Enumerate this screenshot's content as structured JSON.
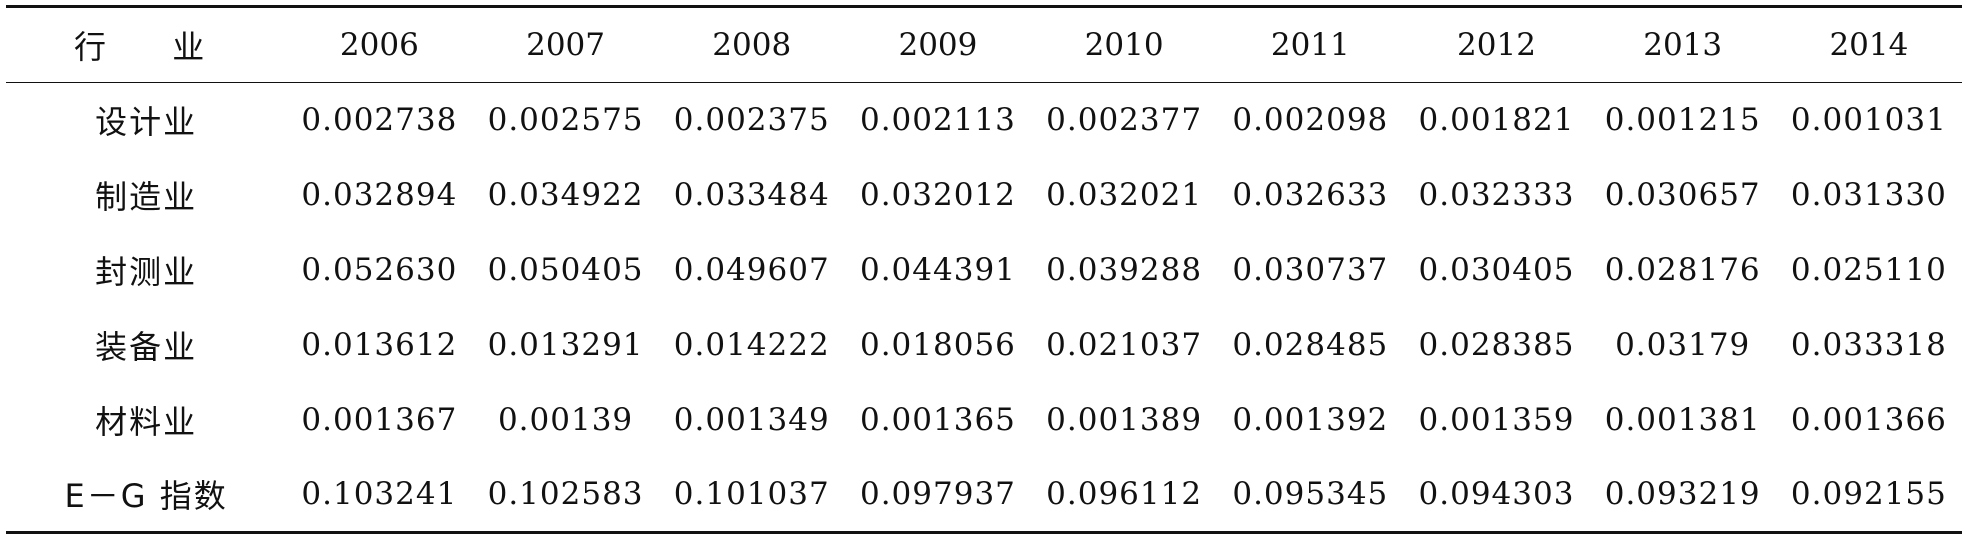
{
  "table": {
    "header": {
      "industry_label": "行 业",
      "years": [
        "2006",
        "2007",
        "2008",
        "2009",
        "2010",
        "2011",
        "2012",
        "2013",
        "2014"
      ]
    },
    "rows": [
      {
        "name": "设计业",
        "values": [
          "0.002738",
          "0.002575",
          "0.002375",
          "0.002113",
          "0.002377",
          "0.002098",
          "0.001821",
          "0.001215",
          "0.001031"
        ]
      },
      {
        "name": "制造业",
        "values": [
          "0.032894",
          "0.034922",
          "0.033484",
          "0.032012",
          "0.032021",
          "0.032633",
          "0.032333",
          "0.030657",
          "0.031330"
        ]
      },
      {
        "name": "封测业",
        "values": [
          "0.052630",
          "0.050405",
          "0.049607",
          "0.044391",
          "0.039288",
          "0.030737",
          "0.030405",
          "0.028176",
          "0.025110"
        ]
      },
      {
        "name": "装备业",
        "values": [
          "0.013612",
          "0.013291",
          "0.014222",
          "0.018056",
          "0.021037",
          "0.028485",
          "0.028385",
          "0.03179",
          "0.033318"
        ]
      },
      {
        "name": "材料业",
        "values": [
          "0.001367",
          "0.00139",
          "0.001349",
          "0.001365",
          "0.001389",
          "0.001392",
          "0.001359",
          "0.001381",
          "0.001366"
        ]
      },
      {
        "name": "E－G 指数",
        "values": [
          "0.103241",
          "0.102583",
          "0.101037",
          "0.097937",
          "0.096112",
          "0.095345",
          "0.094303",
          "0.093219",
          "0.092155"
        ]
      }
    ]
  }
}
